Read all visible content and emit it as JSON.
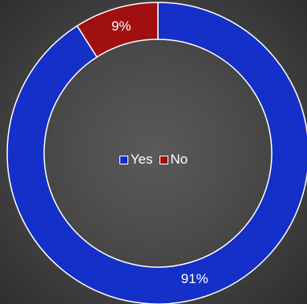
{
  "chart_data": {
    "type": "pie",
    "variant": "doughnut",
    "categories": [
      "Yes",
      "No"
    ],
    "values": [
      91,
      9
    ],
    "labels": [
      "91%",
      "9%"
    ],
    "colors": [
      "#1530c8",
      "#a01010"
    ],
    "legend_placement": "center"
  },
  "legend": {
    "items": [
      {
        "label": "Yes",
        "color": "#1530c8"
      },
      {
        "label": "No",
        "color": "#a01010"
      }
    ]
  }
}
